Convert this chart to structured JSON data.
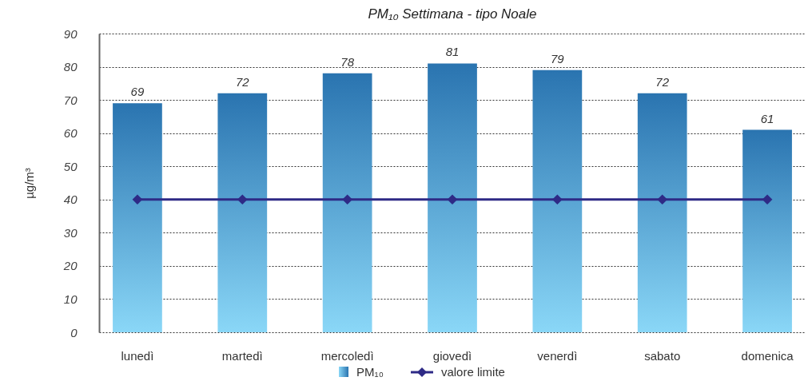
{
  "chart_data": {
    "type": "bar",
    "title": "PM₁₀ Settimana - tipo Noale",
    "ylabel": "µg/m³",
    "categories": [
      "lunedì",
      "martedì",
      "mercoledì",
      "giovedì",
      "venerdì",
      "sabato",
      "domenica"
    ],
    "series": [
      {
        "name": "PM₁₀",
        "color": "#2a74b0",
        "values": [
          69,
          72,
          78,
          81,
          79,
          72,
          61
        ],
        "value_labels": [
          "69",
          "72",
          "78",
          "81",
          "79",
          "72",
          "61"
        ]
      },
      {
        "name": "valore limite",
        "type": "line",
        "color": "#2e2a86",
        "values": [
          40,
          40,
          40,
          40,
          40,
          40,
          40
        ],
        "marker": "diamond"
      }
    ],
    "ylim": [
      0,
      90
    ],
    "yticks": [
      0,
      10,
      20,
      30,
      40,
      50,
      60,
      70,
      80,
      90
    ],
    "grid": "y",
    "legend": "bottom"
  }
}
